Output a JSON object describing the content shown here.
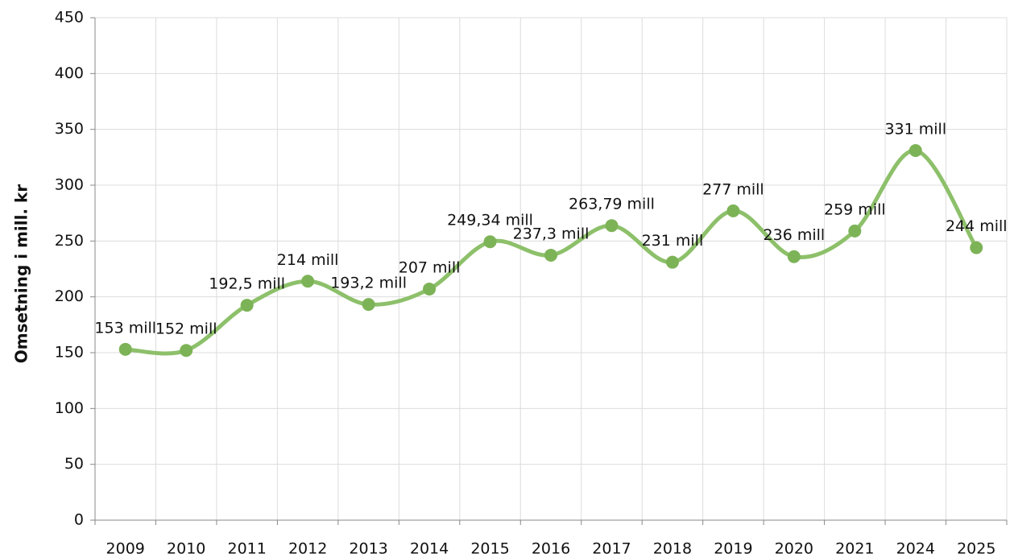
{
  "chart_data": {
    "type": "line",
    "y_label": "Omsetning i mill. kr",
    "categories": [
      "2009",
      "2010",
      "2011",
      "2012",
      "2013",
      "2014",
      "2015",
      "2016",
      "2017",
      "2018",
      "2019",
      "2020",
      "2021",
      "2024",
      "2025"
    ],
    "series": [
      {
        "color": "#8dc06a",
        "values": [
          153,
          152,
          192.5,
          214,
          193.2,
          207,
          249.34,
          237.3,
          263.79,
          231,
          277,
          236,
          259,
          331,
          244
        ],
        "value_labels": [
          "153 mill",
          "152 mill",
          "192,5 mill",
          "214 mill",
          "193,2 mill",
          "207 mill",
          "249,34 mill",
          "237,3 mill",
          "263,79 mill",
          "231 mill",
          "277 mill",
          "236 mill",
          "259 mill",
          "331 mill",
          "244 mill"
        ]
      }
    ],
    "ylim": [
      0,
      450
    ],
    "yticks": [
      0,
      50,
      100,
      150,
      200,
      250,
      300,
      350,
      400,
      450
    ],
    "grid": true
  }
}
